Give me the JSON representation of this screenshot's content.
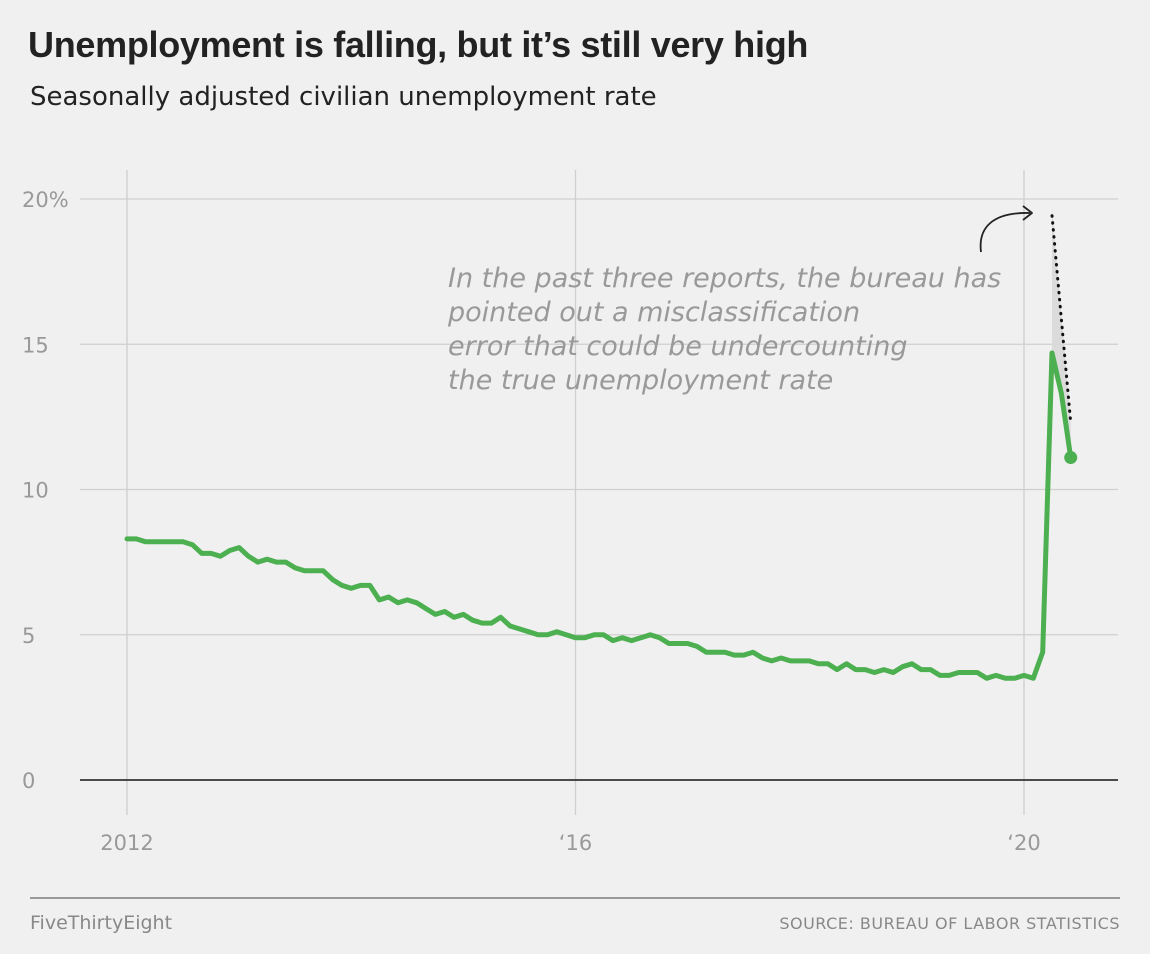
{
  "header": {
    "title": "Unemployment is falling, but it’s still very high",
    "subtitle": "Seasonally adjusted civilian unemployment rate"
  },
  "footer": {
    "brand": "FiveThirtyEight",
    "source": "SOURCE: BUREAU OF LABOR STATISTICS"
  },
  "colors": {
    "line": "#4caf50",
    "grid": "#cfcfcf",
    "baseline": "#333333",
    "text_muted": "#999999"
  },
  "chart_data": {
    "type": "line",
    "title": "Unemployment is falling, but it’s still very high",
    "subtitle": "Seasonally adjusted civilian unemployment rate",
    "xlabel": "",
    "ylabel": "",
    "xlim": [
      2012,
      2020.55
    ],
    "ylim": [
      0,
      20
    ],
    "grid": true,
    "x_ticks": [
      {
        "value": 2012,
        "label": "2012"
      },
      {
        "value": 2016,
        "label": "‘16"
      },
      {
        "value": 2020,
        "label": "‘20"
      }
    ],
    "y_ticks": [
      {
        "value": 20,
        "label": "20%"
      },
      {
        "value": 15,
        "label": "15"
      },
      {
        "value": 10,
        "label": "10"
      },
      {
        "value": 5,
        "label": "5"
      },
      {
        "value": 0,
        "label": "0"
      }
    ],
    "start": {
      "year": 2012,
      "month": 1
    },
    "series": [
      {
        "values": [
          8.3,
          8.3,
          8.2,
          8.2,
          8.2,
          8.2,
          8.2,
          8.1,
          7.8,
          7.8,
          7.7,
          7.9,
          8.0,
          7.7,
          7.5,
          7.6,
          7.5,
          7.5,
          7.3,
          7.2,
          7.2,
          7.2,
          6.9,
          6.7,
          6.6,
          6.7,
          6.7,
          6.2,
          6.3,
          6.1,
          6.2,
          6.1,
          5.9,
          5.7,
          5.8,
          5.6,
          5.7,
          5.5,
          5.4,
          5.4,
          5.6,
          5.3,
          5.2,
          5.1,
          5.0,
          5.0,
          5.1,
          5.0,
          4.9,
          4.9,
          5.0,
          5.0,
          4.8,
          4.9,
          4.8,
          4.9,
          5.0,
          4.9,
          4.7,
          4.7,
          4.7,
          4.6,
          4.4,
          4.4,
          4.4,
          4.3,
          4.3,
          4.4,
          4.2,
          4.1,
          4.2,
          4.1,
          4.1,
          4.1,
          4.0,
          4.0,
          3.8,
          4.0,
          3.8,
          3.8,
          3.7,
          3.8,
          3.7,
          3.9,
          4.0,
          3.8,
          3.8,
          3.6,
          3.6,
          3.7,
          3.7,
          3.7,
          3.5,
          3.6,
          3.5,
          3.5,
          3.6,
          3.5,
          4.4,
          14.7,
          13.3,
          11.1
        ]
      }
    ],
    "misclassification_upper": [
      {
        "year": 2020,
        "month": 4,
        "value": 19.7
      },
      {
        "year": 2020,
        "month": 6,
        "value": 12.3
      }
    ],
    "annotation": [
      "In the past three reports, the bureau has",
      "pointed out a misclassification",
      "error that could be undercounting",
      "the true unemployment rate"
    ]
  }
}
